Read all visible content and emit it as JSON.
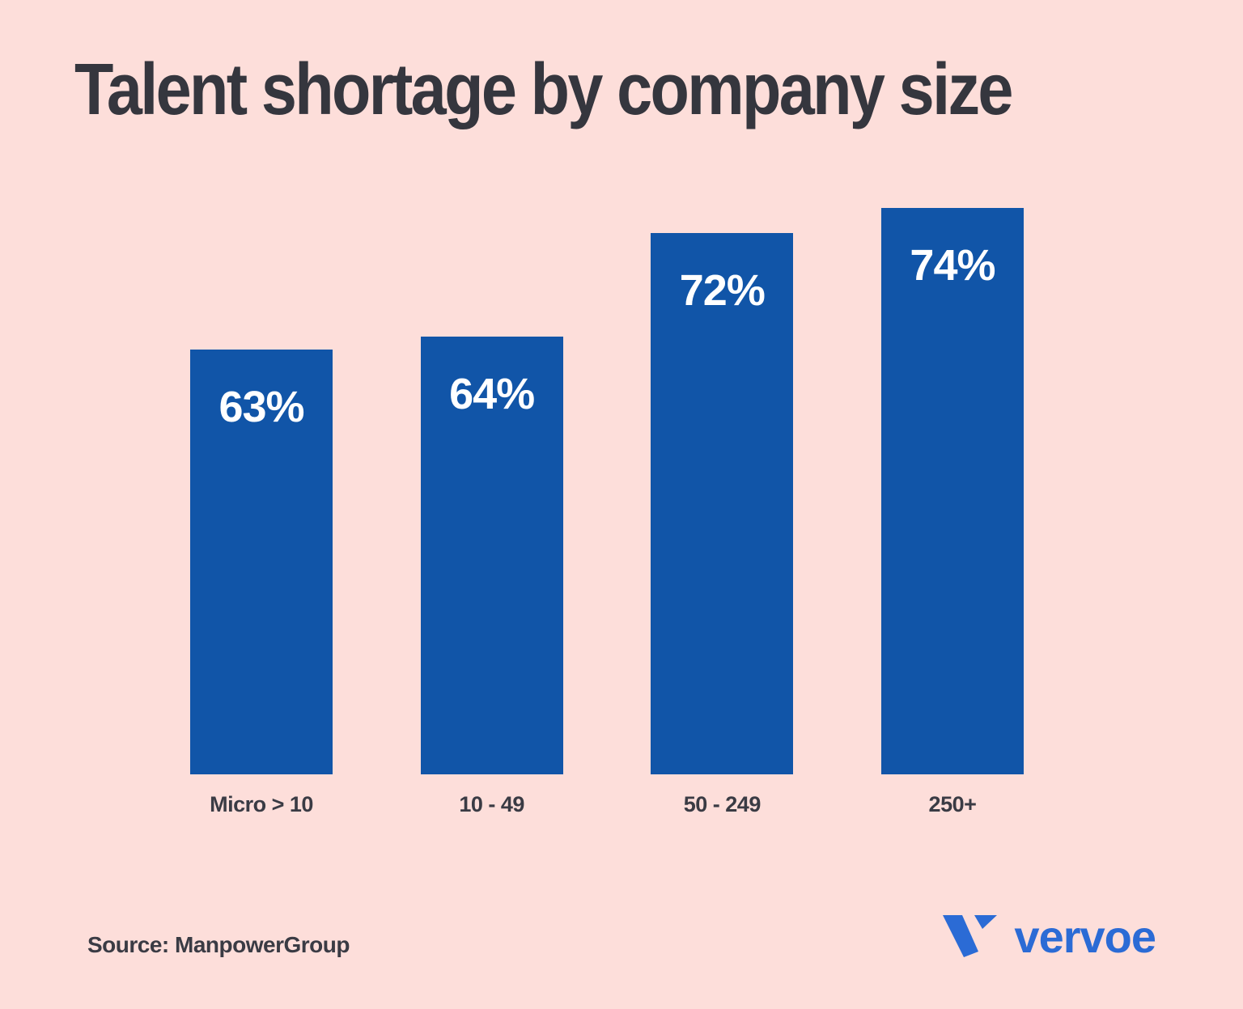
{
  "page": {
    "background_color": "#FDDEDA",
    "source_label": "Source: ManpowerGroup",
    "logo": {
      "mark_icon": "vervoe-v-mark",
      "text": "vervoe"
    }
  },
  "colors": {
    "background": "#FDDEDA",
    "bar": "#1155A8",
    "title_text": "#35363E",
    "axis_text": "#3A3B44",
    "value_text": "#FFFFFF",
    "logo_blue": "#2B6BD5"
  },
  "chart_data": {
    "type": "bar",
    "title": "Talent shortage by company size",
    "categories": [
      "Micro > 10",
      "10 - 49",
      "50 - 249",
      "250+"
    ],
    "values": [
      63,
      64,
      72,
      74
    ],
    "value_labels": [
      "63%",
      "64%",
      "72%",
      "74%"
    ],
    "xlabel": "",
    "ylabel": "",
    "ylim": [
      30,
      80
    ],
    "grid": false,
    "legend": false,
    "bar_color": "#1155A8",
    "value_label_position": "inside-top",
    "source": "Source: ManpowerGroup"
  }
}
